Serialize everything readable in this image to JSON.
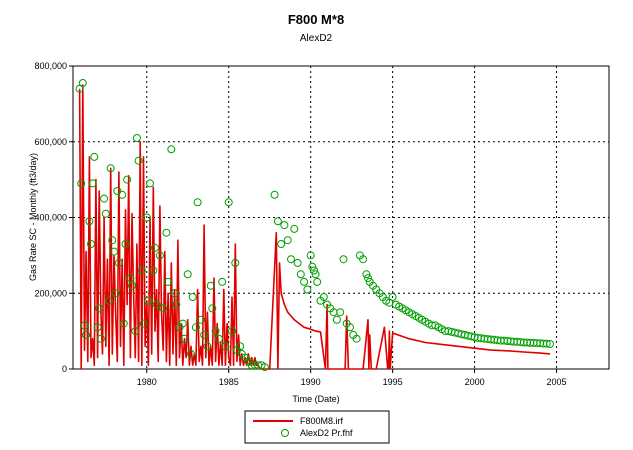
{
  "chart_data": {
    "type": "line",
    "title": "F800 M*8",
    "subtitle": "AlexD2",
    "xlabel": "Time (Date)",
    "ylabel": "Gas Rate SC - Monthly (ft3/day)",
    "xlim": [
      1975.5,
      2008.2
    ],
    "ylim": [
      0,
      800000
    ],
    "x_ticks": [
      1980,
      1985,
      1990,
      1995,
      2000,
      2005
    ],
    "x_tick_labels": [
      "1980",
      "1985",
      "1990",
      "1995",
      "2000",
      "2005"
    ],
    "y_ticks": [
      0,
      200000,
      400000,
      600000,
      800000
    ],
    "y_tick_labels": [
      "0",
      "200,000",
      "400,000",
      "600,000",
      "800,000"
    ],
    "grid": true,
    "legend_position": "bottom-center",
    "colors": {
      "series1": "#e00000",
      "series2": "#00a000"
    },
    "series": [
      {
        "name": "F800M8.irf",
        "style": "line",
        "x": [
          1975.9,
          1976.0,
          1976.1,
          1976.2,
          1976.3,
          1976.4,
          1976.5,
          1976.6,
          1976.7,
          1976.8,
          1976.9,
          1977.0,
          1977.1,
          1977.2,
          1977.3,
          1977.4,
          1977.5,
          1977.6,
          1977.7,
          1977.8,
          1977.9,
          1978.0,
          1978.1,
          1978.2,
          1978.3,
          1978.4,
          1978.5,
          1978.6,
          1978.7,
          1978.8,
          1978.9,
          1979.0,
          1979.1,
          1979.2,
          1979.3,
          1979.4,
          1979.5,
          1979.6,
          1979.7,
          1979.8,
          1979.9,
          1980.0,
          1980.1,
          1980.2,
          1980.3,
          1980.4,
          1980.5,
          1980.6,
          1980.7,
          1980.8,
          1980.9,
          1981.0,
          1981.1,
          1981.2,
          1981.3,
          1981.4,
          1981.5,
          1981.6,
          1981.7,
          1981.8,
          1981.9,
          1982.0,
          1982.1,
          1982.2,
          1982.3,
          1982.4,
          1982.5,
          1982.6,
          1982.7,
          1982.8,
          1982.9,
          1983.0,
          1983.1,
          1983.2,
          1983.3,
          1983.4,
          1983.5,
          1983.6,
          1983.7,
          1983.8,
          1983.9,
          1984.0,
          1984.1,
          1984.2,
          1984.3,
          1984.4,
          1984.5,
          1984.6,
          1984.7,
          1984.8,
          1984.9,
          1985.0,
          1985.1,
          1985.2,
          1985.3,
          1985.4,
          1985.5,
          1985.6,
          1985.7,
          1985.8,
          1985.9,
          1986.0,
          1986.1,
          1986.2,
          1986.3,
          1986.4,
          1986.5,
          1986.6,
          1986.7,
          1986.8,
          1986.9,
          1987.0,
          1987.5,
          1987.9,
          1988.0,
          1988.1,
          1988.2,
          1988.4,
          1988.6,
          1988.8,
          1989.0,
          1989.3,
          1989.6,
          1990.0,
          1990.3,
          1990.6,
          1990.9,
          1991.0,
          1991.05,
          1991.2,
          1991.5,
          1991.8,
          1992.0,
          1992.1,
          1992.2,
          1992.3,
          1992.35,
          1992.5,
          1992.8,
          1993.0,
          1993.2,
          1993.5,
          1993.55,
          1993.6,
          1993.7,
          1993.75,
          1994.0,
          1994.5,
          1994.7,
          1994.75,
          1994.8,
          1994.85,
          1995.0,
          1996.0,
          1997.0,
          1998.0,
          1999.0,
          2000.0,
          2001.0,
          2002.0,
          2003.0,
          2004.0,
          2004.6
        ],
        "y": [
          740000,
          0,
          750000,
          50000,
          310000,
          20000,
          560000,
          30000,
          80000,
          10000,
          500000,
          30000,
          470000,
          150000,
          40000,
          400000,
          60000,
          290000,
          10000,
          530000,
          40000,
          300000,
          150000,
          20000,
          520000,
          60000,
          290000,
          10000,
          420000,
          170000,
          510000,
          30000,
          410000,
          200000,
          30000,
          330000,
          20000,
          600000,
          10000,
          560000,
          60000,
          180000,
          10000,
          400000,
          40000,
          480000,
          100000,
          210000,
          20000,
          430000,
          150000,
          50000,
          310000,
          20000,
          200000,
          10000,
          280000,
          40000,
          210000,
          10000,
          340000,
          30000,
          120000,
          10000,
          80000,
          30000,
          130000,
          10000,
          60000,
          10000,
          40000,
          10000,
          210000,
          20000,
          60000,
          10000,
          380000,
          30000,
          150000,
          10000,
          60000,
          10000,
          240000,
          20000,
          120000,
          10000,
          70000,
          10000,
          210000,
          10000,
          120000,
          30000,
          10000,
          190000,
          10000,
          330000,
          20000,
          90000,
          10000,
          40000,
          10000,
          30000,
          10000,
          40000,
          10000,
          30000,
          10000,
          30000,
          10000,
          10000,
          0,
          0,
          0,
          360000,
          0,
          280000,
          200000,
          170000,
          150000,
          140000,
          130000,
          120000,
          110000,
          105000,
          100000,
          98000,
          0,
          170000,
          0,
          0,
          0,
          0,
          0,
          0,
          140000,
          0,
          0,
          0,
          0,
          0,
          0,
          130000,
          0,
          90000,
          0,
          0,
          0,
          110000,
          0,
          0,
          100000,
          0,
          95000,
          80000,
          70000,
          65000,
          60000,
          55000,
          50000,
          48000,
          45000,
          42000,
          40000
        ]
      },
      {
        "name": "AlexD2 Pr.fhf",
        "style": "scatter",
        "x": [
          1975.9,
          1976.0,
          1976.1,
          1976.2,
          1976.3,
          1976.5,
          1976.6,
          1976.7,
          1976.8,
          1977.0,
          1977.1,
          1977.2,
          1977.4,
          1977.5,
          1977.7,
          1977.8,
          1977.9,
          1978.0,
          1978.1,
          1978.2,
          1978.3,
          1978.5,
          1978.6,
          1978.7,
          1978.8,
          1979.0,
          1979.1,
          1979.3,
          1979.4,
          1979.5,
          1979.7,
          1979.8,
          1980.0,
          1980.1,
          1980.2,
          1980.4,
          1980.5,
          1980.6,
          1980.8,
          1981.0,
          1981.2,
          1981.3,
          1981.5,
          1981.7,
          1981.8,
          1982.0,
          1982.2,
          1982.3,
          1982.5,
          1982.7,
          1982.8,
          1983.0,
          1983.1,
          1983.3,
          1983.5,
          1983.7,
          1983.9,
          1984.0,
          1984.2,
          1984.4,
          1984.6,
          1984.8,
          1985.0,
          1985.2,
          1985.4,
          1985.5,
          1985.7,
          1985.8,
          1986.0,
          1986.2,
          1986.4,
          1986.6,
          1986.8,
          1987.0,
          1987.2,
          1987.8,
          1988.0,
          1988.2,
          1988.4,
          1988.6,
          1988.8,
          1989.0,
          1989.2,
          1989.4,
          1989.6,
          1989.8,
          1990.0,
          1990.1,
          1990.2,
          1990.3,
          1990.4,
          1990.6,
          1990.8,
          1991.0,
          1991.2,
          1991.4,
          1991.6,
          1991.8,
          1992.0,
          1992.2,
          1992.4,
          1992.6,
          1992.8,
          1993.0,
          1993.2,
          1993.4,
          1993.5,
          1993.6,
          1993.8,
          1994.0,
          1994.2,
          1994.4,
          1994.6,
          1994.8,
          1995.0,
          1995.2,
          1995.4,
          1995.6,
          1995.8,
          1996.0,
          1996.2,
          1996.4,
          1996.6,
          1996.8,
          1997.0,
          1997.2,
          1997.4,
          1997.6,
          1997.8,
          1998.0,
          1998.2,
          1998.4,
          1998.6,
          1998.8,
          1999.0,
          1999.2,
          1999.4,
          1999.6,
          1999.8,
          2000.0,
          2000.2,
          2000.4,
          2000.6,
          2000.8,
          2001.0,
          2001.2,
          2001.4,
          2001.6,
          2001.8,
          2002.0,
          2002.2,
          2002.4,
          2002.6,
          2002.8,
          2003.0,
          2003.2,
          2003.4,
          2003.6,
          2003.8,
          2004.0,
          2004.2,
          2004.4,
          2004.6
        ],
        "y": [
          740000,
          490000,
          755000,
          115000,
          90000,
          390000,
          330000,
          490000,
          560000,
          110000,
          160000,
          80000,
          450000,
          410000,
          180000,
          530000,
          340000,
          310000,
          200000,
          470000,
          280000,
          460000,
          120000,
          330000,
          500000,
          240000,
          220000,
          100000,
          610000,
          550000,
          260000,
          120000,
          400000,
          180000,
          490000,
          260000,
          320000,
          170000,
          300000,
          160000,
          360000,
          230000,
          580000,
          200000,
          170000,
          110000,
          120000,
          80000,
          250000,
          40000,
          190000,
          110000,
          440000,
          130000,
          90000,
          60000,
          220000,
          160000,
          100000,
          80000,
          230000,
          60000,
          440000,
          100000,
          280000,
          50000,
          60000,
          40000,
          30000,
          20000,
          10000,
          10000,
          10000,
          10000,
          5000,
          460000,
          390000,
          330000,
          380000,
          340000,
          290000,
          370000,
          280000,
          250000,
          230000,
          210000,
          300000,
          270000,
          260000,
          250000,
          230000,
          180000,
          190000,
          170000,
          160000,
          150000,
          130000,
          150000,
          290000,
          120000,
          110000,
          90000,
          80000,
          300000,
          290000,
          250000,
          240000,
          230000,
          220000,
          210000,
          200000,
          190000,
          180000,
          175000,
          190000,
          170000,
          165000,
          160000,
          155000,
          150000,
          145000,
          140000,
          135000,
          130000,
          125000,
          120000,
          115000,
          115000,
          110000,
          105000,
          100000,
          100000,
          98000,
          96000,
          94000,
          92000,
          90000,
          88000,
          86000,
          84000,
          82000,
          81000,
          80000,
          79000,
          78000,
          77000,
          76000,
          75000,
          75000,
          74000,
          73000,
          72000,
          72000,
          71000,
          70000,
          70000,
          69000,
          69000,
          68000,
          68000,
          67000,
          67000,
          66000
        ]
      }
    ]
  }
}
